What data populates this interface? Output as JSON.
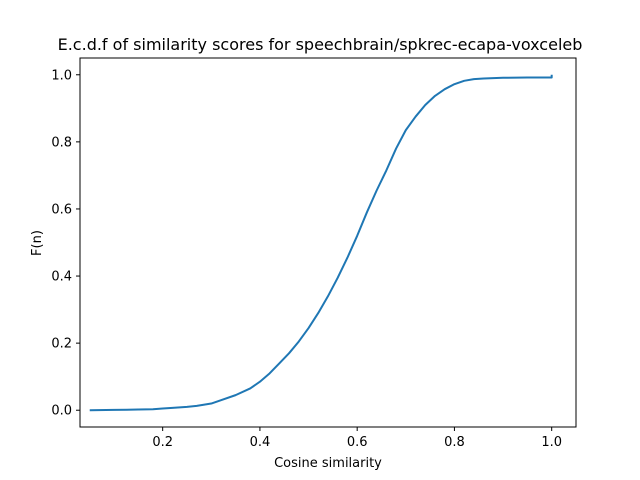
{
  "chart_data": {
    "type": "line",
    "title": "E.c.d.f of similarity scores for speechbrain/spkrec-ecapa-voxceleb",
    "xlabel": "Cosine similarity",
    "ylabel": "F(n)",
    "xlim": [
      0.03,
      1.05
    ],
    "ylim": [
      -0.05,
      1.05
    ],
    "xticks": [
      0.2,
      0.4,
      0.6,
      0.8,
      1.0
    ],
    "xtick_labels": [
      "0.2",
      "0.4",
      "0.6",
      "0.8",
      "1.0"
    ],
    "yticks": [
      0.0,
      0.2,
      0.4,
      0.6,
      0.8,
      1.0
    ],
    "ytick_labels": [
      "0.0",
      "0.2",
      "0.4",
      "0.6",
      "0.8",
      "1.0"
    ],
    "grid": false,
    "line_color": "#1f77b4",
    "series": [
      {
        "x": [
          0.05,
          0.1,
          0.15,
          0.18,
          0.2,
          0.22,
          0.25,
          0.27,
          0.3,
          0.32,
          0.35,
          0.38,
          0.4,
          0.42,
          0.44,
          0.46,
          0.48,
          0.5,
          0.52,
          0.54,
          0.56,
          0.58,
          0.6,
          0.62,
          0.64,
          0.66,
          0.68,
          0.7,
          0.72,
          0.74,
          0.76,
          0.78,
          0.8,
          0.82,
          0.84,
          0.86,
          0.88,
          0.9,
          0.95,
          1.0,
          1.0
        ],
        "y": [
          0.0,
          0.001,
          0.002,
          0.003,
          0.005,
          0.007,
          0.01,
          0.013,
          0.02,
          0.03,
          0.045,
          0.065,
          0.085,
          0.11,
          0.14,
          0.17,
          0.205,
          0.245,
          0.29,
          0.34,
          0.395,
          0.455,
          0.52,
          0.59,
          0.655,
          0.715,
          0.78,
          0.835,
          0.875,
          0.91,
          0.937,
          0.957,
          0.972,
          0.982,
          0.987,
          0.989,
          0.99,
          0.991,
          0.992,
          0.992,
          1.0
        ]
      }
    ]
  }
}
